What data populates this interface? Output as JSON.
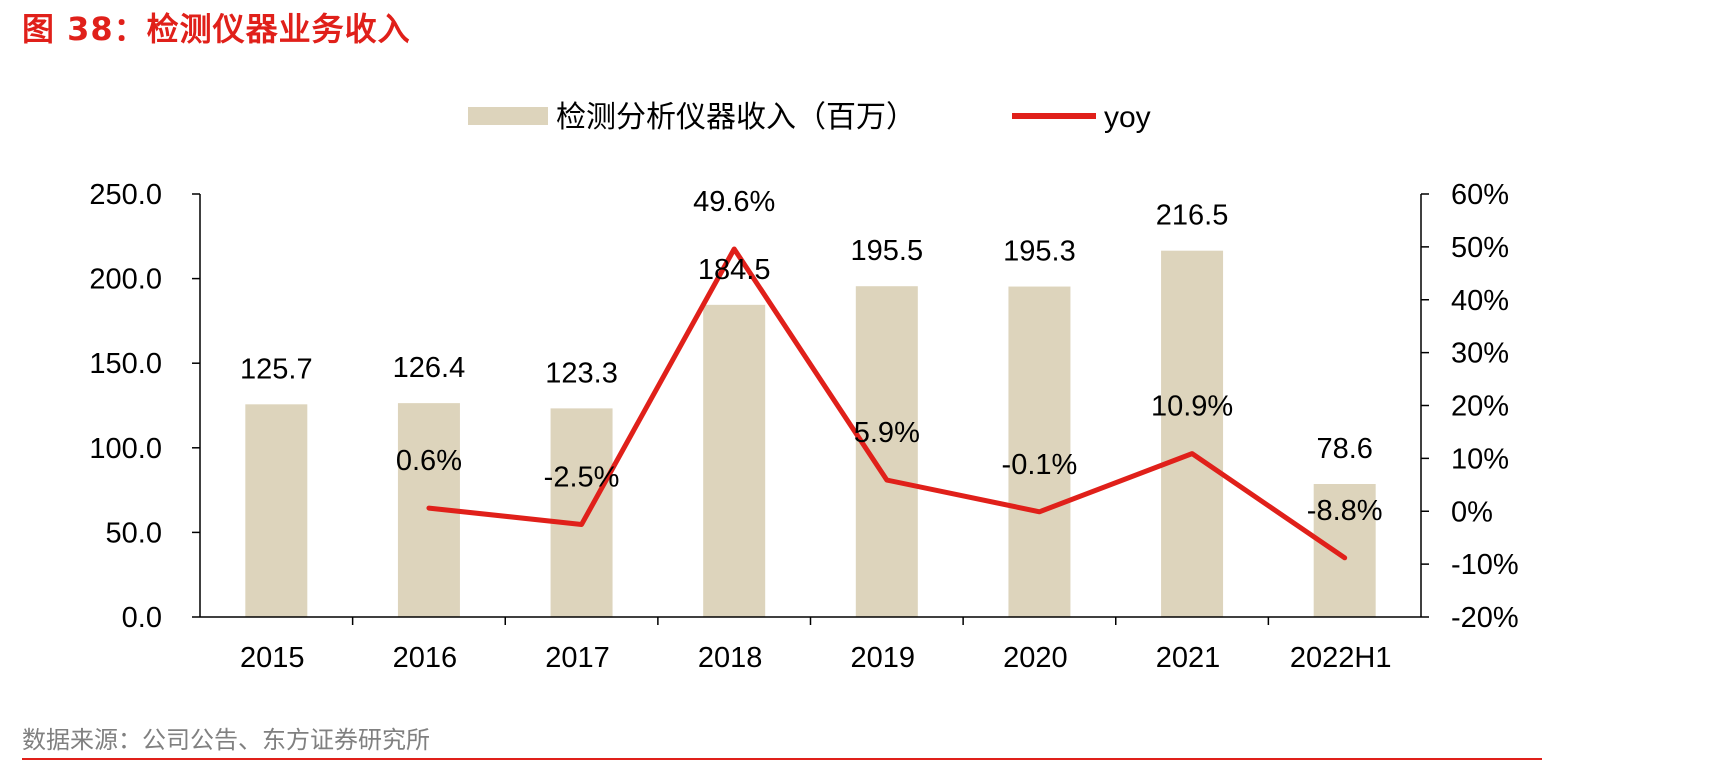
{
  "figure": {
    "title": "图 38：检测仪器业务收入",
    "source": "数据来源：公司公告、东方证券研究所"
  },
  "colors": {
    "title": "#e0201a",
    "bar": "#ddd4bc",
    "line": "#e0201a",
    "axis": "#000000",
    "source": "#808080"
  },
  "chart_data": {
    "type": "bar",
    "categories": [
      "2015",
      "2016",
      "2017",
      "2018",
      "2019",
      "2020",
      "2021",
      "2022H1"
    ],
    "series": [
      {
        "name": "检测分析仪器收入（百万）",
        "type": "bar",
        "axis": "left",
        "values": [
          125.7,
          126.4,
          123.3,
          184.5,
          195.5,
          195.3,
          216.5,
          78.6
        ],
        "labels": [
          "125.7",
          "126.4",
          "123.3",
          "184.5",
          "195.5",
          "195.3",
          "216.5",
          "78.6"
        ]
      },
      {
        "name": "yoy",
        "type": "line",
        "axis": "right",
        "values": [
          null,
          0.6,
          -2.5,
          49.6,
          5.9,
          -0.1,
          10.9,
          -8.8
        ],
        "labels": [
          "",
          "0.6%",
          "-2.5%",
          "49.6%",
          "5.9%",
          "-0.1%",
          "10.9%",
          "-8.8%"
        ]
      }
    ],
    "left_axis": {
      "ylim": [
        0,
        250
      ],
      "ticks": [
        0,
        50,
        100,
        150,
        200,
        250
      ],
      "tick_labels": [
        "0.0",
        "50.0",
        "100.0",
        "150.0",
        "200.0",
        "250.0"
      ]
    },
    "right_axis": {
      "ylim": [
        -20,
        60
      ],
      "ticks": [
        -20,
        -10,
        0,
        10,
        20,
        30,
        40,
        50,
        60
      ],
      "tick_labels": [
        "-20%",
        "-10%",
        "0%",
        "10%",
        "20%",
        "30%",
        "40%",
        "50%",
        "60%"
      ]
    },
    "legend_position": "top-center",
    "grid": false
  }
}
